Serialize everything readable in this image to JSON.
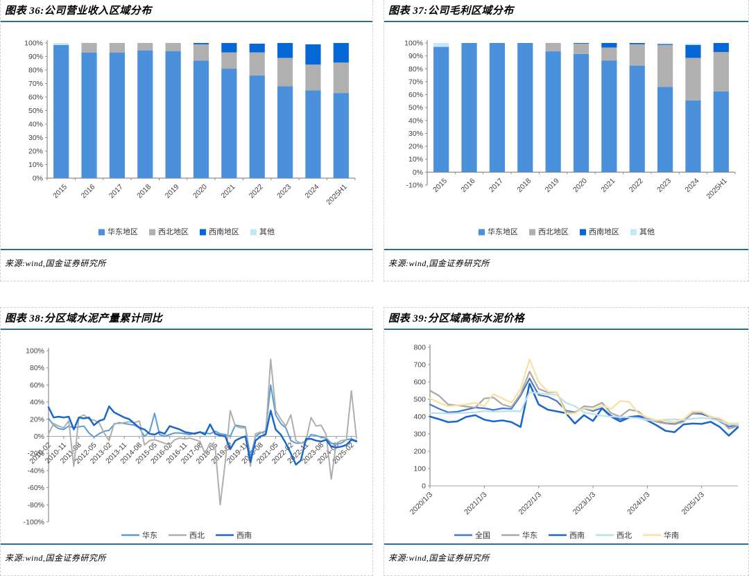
{
  "panels": [
    {
      "title": "图表 36:公司营业收入区域分布",
      "source": "来源:wind,国金证券研究所"
    },
    {
      "title": "图表 37:公司毛利区域分布",
      "source": "来源:wind,国金证券研究所"
    },
    {
      "title": "图表 38:分区域水泥产量累计同比",
      "source": "来源:wind,国金证券研究所"
    },
    {
      "title": "图表 39:分区域高标水泥价格",
      "source": "来源:wind,国金证券研究所"
    }
  ],
  "style": {
    "rule_color": "#2b6e8f",
    "axis_line_color": "#8c8c8c",
    "axis_text_color": "#3f3f3f",
    "legend_text_color": "#333333"
  },
  "chart_data": [
    {
      "type": "bar",
      "stacked": true,
      "title": "公司营业收入区域分布",
      "yformat": "percent",
      "ylim": [
        0,
        100
      ],
      "ystep": 10,
      "grid": false,
      "legend_position": "bottom",
      "categories": [
        "2015",
        "2016",
        "2017",
        "2018",
        "2019",
        "2020",
        "2021",
        "2022",
        "2023",
        "2024",
        "2025H1"
      ],
      "series": [
        {
          "name": "华东地区",
          "color": "#4a90db",
          "values": [
            98.5,
            93,
            93,
            94.5,
            94,
            87,
            81,
            76,
            68,
            65,
            63
          ]
        },
        {
          "name": "西北地区",
          "color": "#b0b0b0",
          "values": [
            0,
            7,
            7,
            5.5,
            6,
            12,
            12,
            17,
            21,
            19,
            22.5
          ]
        },
        {
          "name": "西南地区",
          "color": "#0667d6",
          "values": [
            0,
            0,
            0,
            0,
            0,
            1,
            7,
            6.5,
            11,
            15,
            14.5
          ]
        },
        {
          "name": "其他",
          "color": "#c3e7f7",
          "values": [
            1.5,
            0,
            0,
            0,
            0,
            0,
            0,
            0,
            0,
            0,
            0
          ]
        }
      ]
    },
    {
      "type": "bar",
      "stacked": true,
      "title": "公司毛利区域分布",
      "yformat": "percent",
      "ylim": [
        -10,
        100
      ],
      "ystep": 10,
      "grid": false,
      "legend_position": "bottom",
      "categories": [
        "2015",
        "2016",
        "2017",
        "2018",
        "2019",
        "2020",
        "2021",
        "2022",
        "2023",
        "2024",
        "2025H1"
      ],
      "series": [
        {
          "name": "华东地区",
          "color": "#4a90db",
          "values": [
            97,
            100,
            100,
            100,
            93.5,
            91.5,
            86.5,
            82.5,
            66,
            55.5,
            62.5
          ]
        },
        {
          "name": "西北地区",
          "color": "#b0b0b0",
          "values": [
            0,
            0,
            0,
            0,
            6.5,
            8,
            10,
            16.5,
            32.5,
            33,
            30.5
          ]
        },
        {
          "name": "西南地区",
          "color": "#0667d6",
          "values": [
            0,
            0,
            0,
            0,
            0,
            0.5,
            3.5,
            1,
            0.7,
            10,
            7
          ]
        },
        {
          "name": "其他",
          "color": "#c3e7f7",
          "values": [
            3,
            0,
            0,
            0,
            0,
            0,
            0,
            0,
            0.3,
            1,
            0
          ]
        }
      ]
    },
    {
      "type": "line",
      "title": "分区域水泥产量累计同比",
      "yformat": "percent",
      "ylim": [
        -100,
        100
      ],
      "ystep": 20,
      "grid": false,
      "legend_position": "bottom",
      "x_tick_every": 3,
      "x_tick_labels": [
        "2010-02",
        "2010-11",
        "2011-08",
        "2012-05",
        "2013-02",
        "2013-11",
        "2014-08",
        "2015-05",
        "2016-02",
        "2016-11",
        "2017-08",
        "2018-05",
        "2019-02",
        "2019-11",
        "2020-08",
        "2021-05",
        "2022-02",
        "2022-11",
        "2023-08",
        "2024-05",
        "2025-02"
      ],
      "series": [
        {
          "name": "华东",
          "color": "#5b9bd5",
          "width": 2,
          "values": [
            21,
            13,
            9,
            8,
            12,
            10,
            11,
            12,
            4,
            -1,
            3,
            6,
            7,
            14,
            16,
            15,
            14,
            13,
            10,
            0,
            5,
            27,
            2,
            0,
            2,
            4,
            4,
            3,
            2,
            4,
            5,
            4,
            3,
            6,
            3,
            2,
            0,
            13,
            12,
            11,
            -25,
            0,
            4,
            6,
            60,
            25,
            15,
            10,
            -5,
            -8,
            -8,
            -6,
            2,
            1,
            -1,
            -2,
            -8,
            -9,
            -8,
            -4,
            -3,
            -5
          ]
        },
        {
          "name": "西北",
          "color": "#aeaeae",
          "width": 2,
          "values": [
            3,
            15,
            12,
            10,
            18,
            -35,
            22,
            25,
            20,
            19,
            16,
            4,
            -5,
            15,
            15,
            16,
            17,
            16,
            18,
            -10,
            -5,
            -4,
            -6,
            -8,
            -10,
            -4,
            -2,
            -3,
            -2,
            -4,
            -6,
            -20,
            -8,
            -12,
            -80,
            -30,
            30,
            12,
            10,
            10,
            -35,
            3,
            5,
            2,
            90,
            30,
            20,
            12,
            25,
            -5,
            -8,
            -5,
            22,
            12,
            13,
            2,
            -50,
            -8,
            -5,
            -4,
            53,
            -2
          ]
        },
        {
          "name": "西南",
          "color": "#1a67c9",
          "width": 2.5,
          "values": [
            34,
            22,
            23,
            22,
            23,
            8,
            22,
            21,
            22,
            13,
            18,
            20,
            35,
            28,
            25,
            22,
            20,
            15,
            10,
            8,
            3,
            2,
            5,
            3,
            12,
            10,
            8,
            5,
            4,
            3,
            5,
            2,
            14,
            3,
            1,
            0,
            -15,
            -5,
            -2,
            0,
            -30,
            -5,
            0,
            2,
            30,
            8,
            2,
            -8,
            -20,
            -33,
            -28,
            -3,
            -3,
            -5,
            -6,
            -4,
            -12,
            -13,
            -12,
            -10,
            -4,
            -6
          ]
        }
      ]
    },
    {
      "type": "line",
      "title": "分区域高标水泥价格",
      "yformat": "number",
      "ylim": [
        0,
        800
      ],
      "ystep": 100,
      "grid": false,
      "legend_position": "bottom",
      "x_tick_every": 6,
      "x_tick_labels": [
        "2020/1/3",
        "2021/1/3",
        "2022/1/3",
        "2023/1/3",
        "2024/1/3",
        "2025/1/3"
      ],
      "series": [
        {
          "name": "全国",
          "color": "#4477c9",
          "width": 2.2,
          "values": [
            470,
            445,
            425,
            428,
            440,
            452,
            448,
            438,
            448,
            445,
            520,
            620,
            525,
            515,
            490,
            435,
            425,
            448,
            432,
            450,
            405,
            385,
            398,
            405,
            392,
            375,
            362,
            358,
            375,
            418,
            415,
            398,
            372,
            342,
            352
          ]
        },
        {
          "name": "华东",
          "color": "#a8a8a8",
          "width": 2.2,
          "values": [
            550,
            520,
            470,
            465,
            458,
            452,
            505,
            510,
            470,
            455,
            530,
            660,
            560,
            540,
            540,
            430,
            420,
            460,
            455,
            480,
            420,
            400,
            440,
            430,
            385,
            370,
            360,
            355,
            370,
            420,
            425,
            400,
            385,
            330,
            345
          ]
        },
        {
          "name": "西南",
          "color": "#1a67c9",
          "width": 2.6,
          "values": [
            400,
            385,
            368,
            372,
            398,
            408,
            382,
            372,
            378,
            368,
            340,
            590,
            470,
            440,
            430,
            420,
            360,
            408,
            375,
            448,
            400,
            372,
            395,
            398,
            378,
            350,
            318,
            310,
            355,
            360,
            358,
            370,
            340,
            290,
            338
          ]
        },
        {
          "name": "西北",
          "color": "#bcdff0",
          "width": 2.2,
          "values": [
            420,
            420,
            418,
            420,
            422,
            425,
            432,
            428,
            430,
            432,
            430,
            540,
            535,
            530,
            525,
            480,
            460,
            425,
            415,
            405,
            400,
            398,
            395,
            392,
            380,
            378,
            382,
            385,
            380,
            388,
            392,
            388,
            375,
            355,
            352
          ]
        },
        {
          "name": "华南",
          "color": "#f9dfa0",
          "width": 2.2,
          "values": [
            505,
            480,
            460,
            465,
            470,
            480,
            460,
            530,
            505,
            480,
            560,
            730,
            600,
            545,
            540,
            415,
            420,
            450,
            440,
            465,
            445,
            490,
            485,
            420,
            395,
            380,
            375,
            370,
            385,
            430,
            428,
            398,
            390,
            360,
            362
          ]
        }
      ]
    }
  ]
}
